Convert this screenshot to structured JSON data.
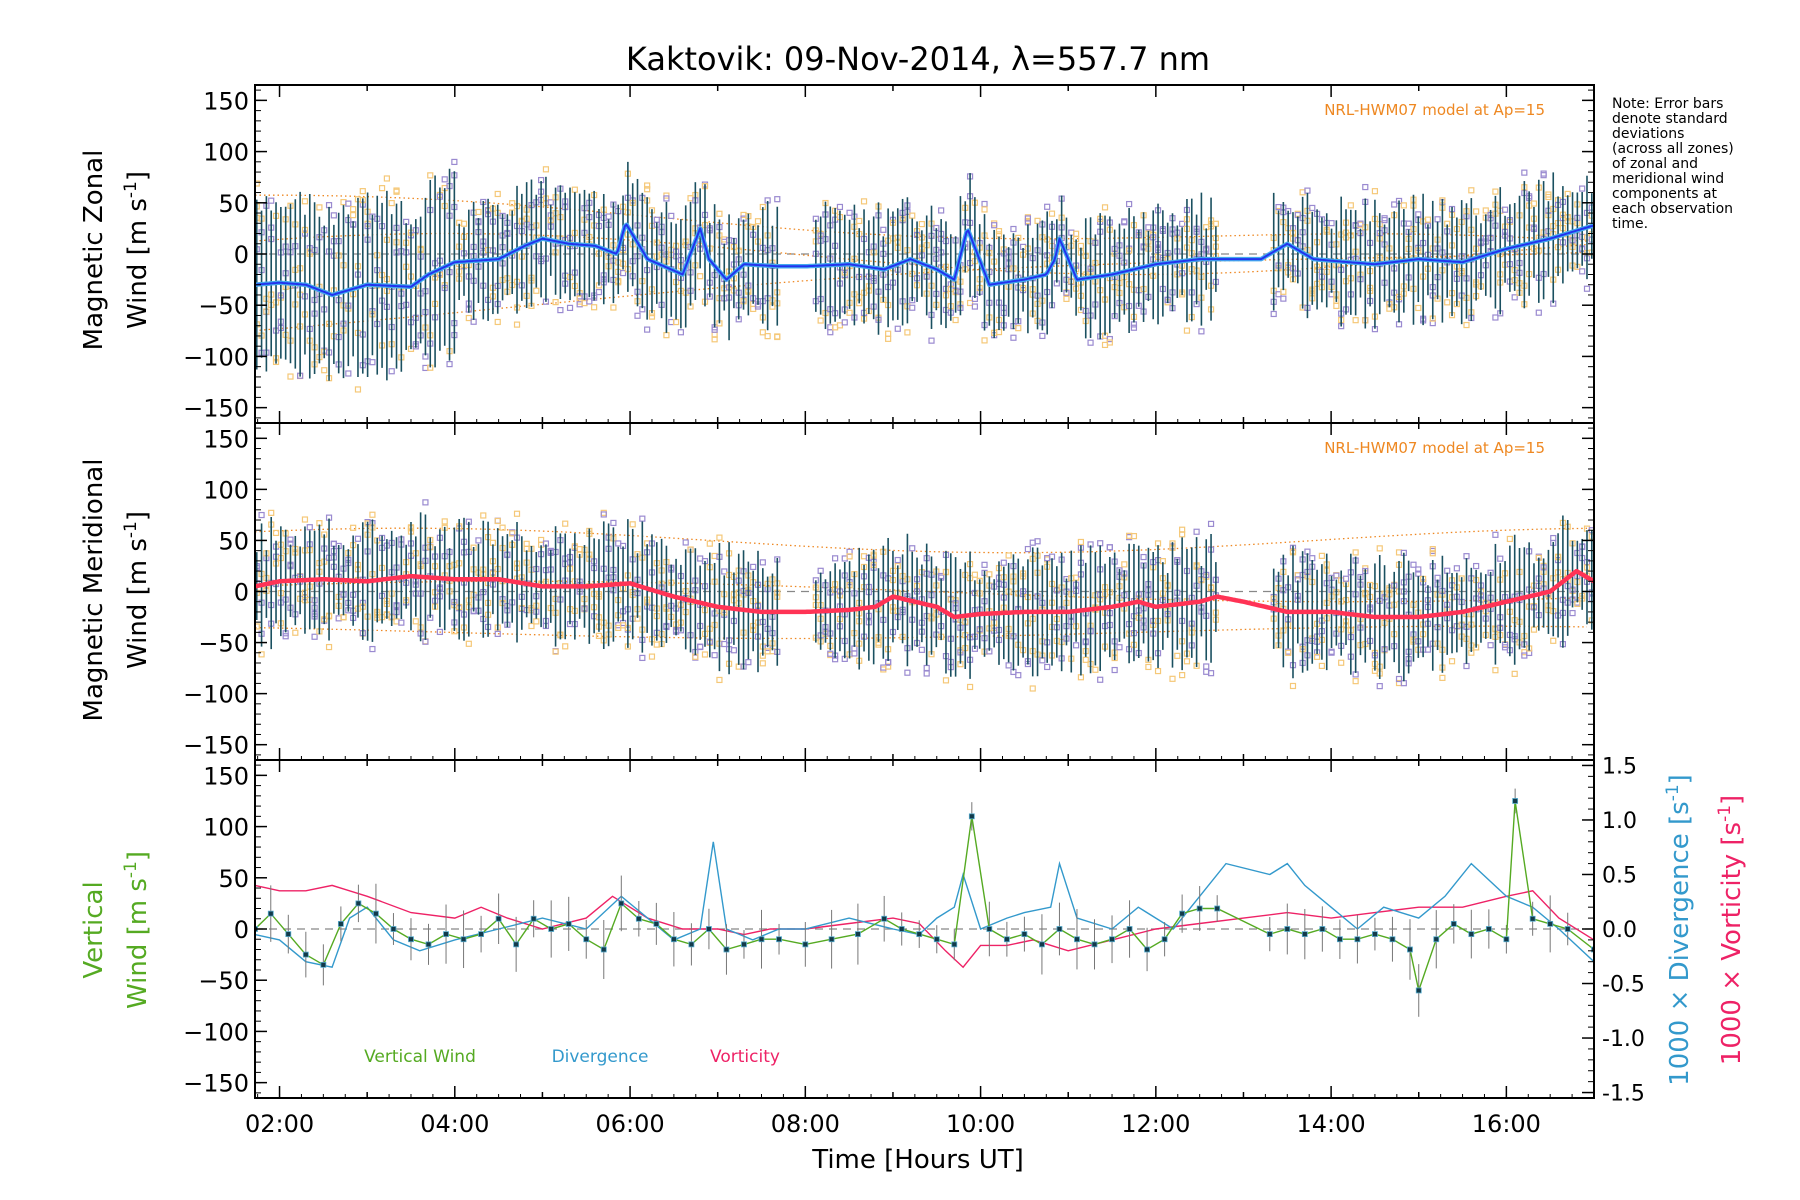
{
  "title": "Kaktovik: 09-Nov-2014, λ=557.7 nm",
  "note": [
    "Note: Error bars",
    "denote standard",
    "deviations",
    "(across all zones)",
    "of zonal and",
    "meridional wind",
    "components at",
    "each observation",
    "time."
  ],
  "x_axis": {
    "label": "Time [Hours UT]",
    "range": [
      1.72,
      17.0
    ],
    "ticks": [
      2,
      4,
      6,
      8,
      10,
      12,
      14,
      16
    ],
    "tick_labels": [
      "02:00",
      "04:00",
      "06:00",
      "08:00",
      "10:00",
      "12:00",
      "14:00",
      "16:00"
    ]
  },
  "colors": {
    "zonal": "#2233ee",
    "zonal_light": "#44aaee",
    "meridional": "#ff3355",
    "vertical": "#55aa22",
    "divergence": "#3399cc",
    "vorticity": "#ee2266",
    "model": "#ee8822",
    "errorbar": "#1a5060",
    "scatter_purple": "#9a8ad0",
    "scatter_orange": "#f5c878",
    "axis": "#000000"
  },
  "chart_data": [
    {
      "type": "line",
      "panel": "zonal",
      "ylabel_line1": "Magnetic Zonal",
      "ylabel_line2": "Wind [m s",
      "ylabel_sup": "-1",
      "ylabel_end": "]",
      "ylim": [
        -165,
        165
      ],
      "yticks": [
        -150,
        -100,
        -50,
        0,
        50,
        100,
        150
      ],
      "model_label": "NRL-HWM07 model at Ap=15",
      "x": [
        1.72,
        2.0,
        2.3,
        2.6,
        3.0,
        3.5,
        3.7,
        4.0,
        4.5,
        4.8,
        5.0,
        5.3,
        5.6,
        5.85,
        5.95,
        6.2,
        6.6,
        6.8,
        6.9,
        7.1,
        7.3,
        7.7,
        8.0,
        8.5,
        8.9,
        9.2,
        9.5,
        9.7,
        9.85,
        10.1,
        10.5,
        10.75,
        10.85,
        10.9,
        11.1,
        11.5,
        12.0,
        12.5,
        12.7,
        13.2,
        13.5,
        13.8,
        14.2,
        14.5,
        15.0,
        15.5,
        16.0,
        16.5,
        17.0
      ],
      "y": [
        -30,
        -28,
        -30,
        -40,
        -30,
        -32,
        -20,
        -8,
        -5,
        8,
        15,
        10,
        8,
        0,
        30,
        -5,
        -20,
        25,
        -5,
        -25,
        -10,
        -12,
        -12,
        -10,
        -15,
        -5,
        -15,
        -25,
        25,
        -30,
        -25,
        -20,
        -5,
        15,
        -25,
        -20,
        -10,
        -5,
        -5,
        -5,
        10,
        -5,
        -8,
        -10,
        -5,
        -8,
        5,
        15,
        28
      ]
    },
    {
      "type": "line",
      "panel": "meridional",
      "ylabel_line1": "Magnetic Meridional",
      "ylabel_line2": "Wind [m s",
      "ylabel_sup": "-1",
      "ylabel_end": "]",
      "ylim": [
        -165,
        165
      ],
      "yticks": [
        -150,
        -100,
        -50,
        0,
        50,
        100,
        150
      ],
      "model_label": "NRL-HWM07 model at Ap=15",
      "x": [
        1.72,
        2.0,
        2.5,
        3.0,
        3.5,
        4.0,
        4.5,
        5.0,
        5.5,
        6.0,
        6.5,
        7.0,
        7.5,
        8.0,
        8.5,
        8.8,
        9.0,
        9.5,
        9.7,
        10.0,
        10.5,
        11.0,
        11.5,
        11.8,
        12.0,
        12.5,
        12.7,
        13.0,
        13.5,
        14.0,
        14.5,
        15.0,
        15.5,
        16.0,
        16.5,
        16.8,
        17.0
      ],
      "y": [
        5,
        10,
        12,
        10,
        15,
        12,
        12,
        5,
        5,
        8,
        -5,
        -15,
        -20,
        -20,
        -18,
        -15,
        -5,
        -15,
        -25,
        -22,
        -20,
        -20,
        -15,
        -10,
        -15,
        -10,
        -5,
        -10,
        -20,
        -20,
        -25,
        -25,
        -20,
        -10,
        0,
        20,
        10
      ]
    },
    {
      "type": "line",
      "panel": "vertical",
      "ylabel_line1": "Vertical",
      "ylabel_line2": "Wind [m s",
      "ylabel_sup": "-1",
      "ylabel_end": "]",
      "ylim": [
        -165,
        165
      ],
      "yticks": [
        -150,
        -100,
        -50,
        0,
        50,
        100,
        150
      ],
      "y2_label": "1000 × Divergence [s",
      "y3_label": "1000 × Vorticity [s",
      "y2_sup": "-1",
      "y2_end": "]",
      "y2lim": [
        -1.55,
        1.55
      ],
      "y2ticks": [
        -1.5,
        -1.0,
        -0.5,
        0.0,
        0.5,
        1.0,
        1.5
      ],
      "y2tick_labels": [
        "-1.5",
        "-1.0",
        "-0.5",
        "0.0",
        "0.5",
        "1.0",
        "1.5"
      ],
      "legend": [
        "Vertical Wind",
        "Divergence",
        "Vorticity"
      ],
      "series": [
        {
          "name": "Vertical Wind",
          "x": [
            1.72,
            1.9,
            2.1,
            2.3,
            2.5,
            2.7,
            2.9,
            3.1,
            3.3,
            3.5,
            3.7,
            3.9,
            4.1,
            4.3,
            4.5,
            4.7,
            4.9,
            5.1,
            5.3,
            5.5,
            5.7,
            5.9,
            6.1,
            6.3,
            6.5,
            6.7,
            6.9,
            7.1,
            7.3,
            7.5,
            7.7,
            8.0,
            8.3,
            8.6,
            8.9,
            9.1,
            9.3,
            9.5,
            9.7,
            9.9,
            10.1,
            10.3,
            10.5,
            10.7,
            10.9,
            11.1,
            11.3,
            11.5,
            11.7,
            11.9,
            12.1,
            12.3,
            12.5,
            12.7,
            13.3,
            13.5,
            13.7,
            13.9,
            14.1,
            14.3,
            14.5,
            14.7,
            14.9,
            15.0,
            15.2,
            15.4,
            15.6,
            15.8,
            16.0,
            16.1,
            16.3,
            16.5,
            16.7,
            17.0
          ],
          "y": [
            0,
            15,
            -5,
            -25,
            -35,
            5,
            25,
            15,
            0,
            -10,
            -15,
            -5,
            -10,
            -5,
            10,
            -15,
            10,
            0,
            5,
            -10,
            -20,
            25,
            10,
            5,
            -10,
            -15,
            0,
            -20,
            -15,
            -10,
            -10,
            -15,
            -10,
            -5,
            10,
            0,
            -5,
            -10,
            -15,
            110,
            0,
            -10,
            -5,
            -15,
            0,
            -10,
            -15,
            -10,
            0,
            -20,
            -10,
            15,
            20,
            20,
            -5,
            0,
            -5,
            0,
            -10,
            -10,
            -5,
            -10,
            -20,
            -60,
            -10,
            5,
            -5,
            0,
            -10,
            125,
            10,
            5,
            0,
            -20
          ]
        },
        {
          "name": "Divergence",
          "x": [
            1.72,
            2.0,
            2.3,
            2.6,
            2.8,
            3.0,
            3.3,
            3.6,
            4.0,
            4.5,
            5.0,
            5.5,
            5.9,
            6.2,
            6.5,
            6.8,
            6.95,
            7.1,
            7.4,
            7.7,
            8.0,
            8.5,
            9.0,
            9.3,
            9.5,
            9.7,
            9.8,
            10.0,
            10.3,
            10.5,
            10.8,
            10.9,
            11.1,
            11.5,
            11.8,
            12.0,
            12.2,
            12.5,
            12.8,
            13.3,
            13.5,
            13.7,
            14.0,
            14.3,
            14.6,
            15.0,
            15.3,
            15.6,
            16.0,
            16.3,
            16.6,
            17.0
          ],
          "y": [
            -0.05,
            -0.1,
            -0.3,
            -0.35,
            0.1,
            0.2,
            -0.1,
            -0.2,
            -0.1,
            0.0,
            0.1,
            0.0,
            0.3,
            0.1,
            -0.1,
            0.0,
            0.8,
            0.0,
            -0.1,
            0.0,
            0.0,
            0.1,
            0.0,
            -0.05,
            0.1,
            0.2,
            0.5,
            0.0,
            0.1,
            0.15,
            0.2,
            0.6,
            0.1,
            0.0,
            0.2,
            0.1,
            0.0,
            0.3,
            0.6,
            0.5,
            0.6,
            0.4,
            0.2,
            0.0,
            0.2,
            0.1,
            0.3,
            0.6,
            0.3,
            0.2,
            0.0,
            -0.3
          ]
        },
        {
          "name": "Vorticity",
          "x": [
            1.72,
            2.0,
            2.3,
            2.6,
            3.0,
            3.5,
            4.0,
            4.3,
            4.6,
            5.0,
            5.5,
            5.8,
            6.2,
            6.6,
            7.0,
            7.3,
            7.6,
            8.0,
            8.5,
            9.0,
            9.3,
            9.6,
            9.8,
            10.0,
            10.3,
            10.6,
            11.0,
            11.5,
            12.0,
            12.5,
            13.0,
            13.5,
            14.0,
            14.5,
            15.0,
            15.5,
            16.0,
            16.3,
            16.6,
            17.0
          ],
          "y": [
            0.4,
            0.35,
            0.35,
            0.4,
            0.3,
            0.15,
            0.1,
            0.2,
            0.1,
            0.0,
            0.1,
            0.3,
            0.1,
            0.0,
            0.0,
            -0.05,
            0.0,
            0.0,
            0.05,
            0.1,
            0.05,
            -0.2,
            -0.35,
            -0.15,
            -0.15,
            -0.1,
            -0.2,
            -0.1,
            0.0,
            0.05,
            0.1,
            0.15,
            0.1,
            0.15,
            0.2,
            0.2,
            0.3,
            0.35,
            0.1,
            -0.1
          ]
        }
      ]
    }
  ]
}
